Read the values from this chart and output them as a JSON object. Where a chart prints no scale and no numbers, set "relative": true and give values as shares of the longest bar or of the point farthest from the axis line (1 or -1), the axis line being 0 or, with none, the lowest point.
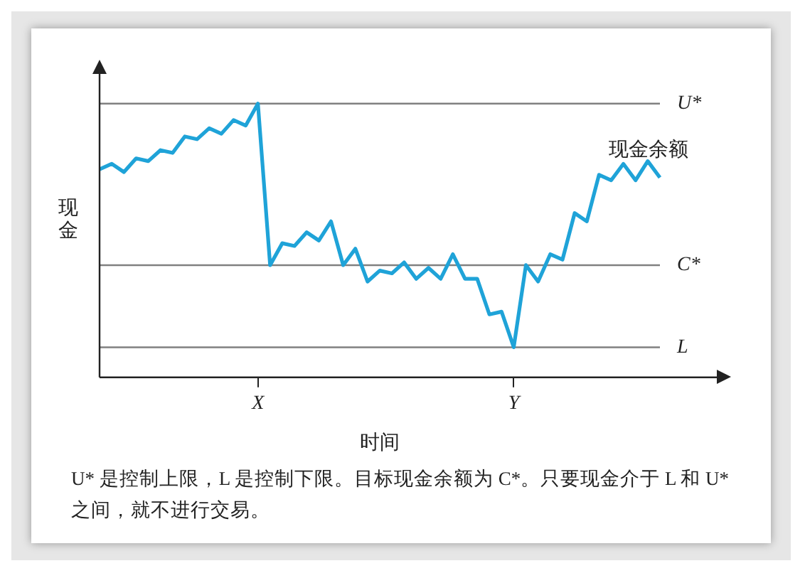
{
  "chart_data": {
    "type": "line",
    "relative": true,
    "xlabel": "时间",
    "ylabel": "现金",
    "categories": [
      null,
      null,
      null,
      null,
      null,
      null,
      null,
      null,
      null,
      null,
      null,
      null,
      null,
      "X",
      null,
      null,
      null,
      null,
      null,
      null,
      null,
      null,
      null,
      null,
      null,
      null,
      null,
      null,
      null,
      null,
      null,
      null,
      null,
      null,
      "Y",
      null,
      null,
      null,
      null,
      null,
      null,
      null,
      null,
      null,
      null,
      null,
      null
    ],
    "series": [
      {
        "name": "现金余额",
        "color": "#1fa3d8",
        "values": [
          0.76,
          0.78,
          0.75,
          0.8,
          0.79,
          0.83,
          0.82,
          0.88,
          0.87,
          0.91,
          0.89,
          0.94,
          0.92,
          1,
          0.41,
          0.49,
          0.48,
          0.53,
          0.5,
          0.57,
          0.41,
          0.47,
          0.35,
          0.39,
          0.38,
          0.42,
          0.36,
          0.4,
          0.36,
          0.45,
          0.36,
          0.36,
          0.23,
          0.24,
          0.11,
          0.41,
          0.35,
          0.45,
          0.43,
          0.6,
          0.57,
          0.74,
          0.72,
          0.78,
          0.72,
          0.79,
          0.73
        ]
      }
    ],
    "ref_lines": [
      {
        "axis": "y",
        "value": 1,
        "label": "U*",
        "color": "#808080"
      },
      {
        "axis": "y",
        "value": 0.41,
        "label": "C*",
        "color": "#808080"
      },
      {
        "axis": "y",
        "value": 0.11,
        "label": "L",
        "color": "#808080"
      }
    ],
    "grid": false,
    "legend": false,
    "marker": "none",
    "line_style": "solid",
    "annotations": [
      "U* 是控制上限，L 是控制下限。目标现金余额为 C*。只要现金介于 L 和 U* 之间，就不进行交易。"
    ]
  }
}
